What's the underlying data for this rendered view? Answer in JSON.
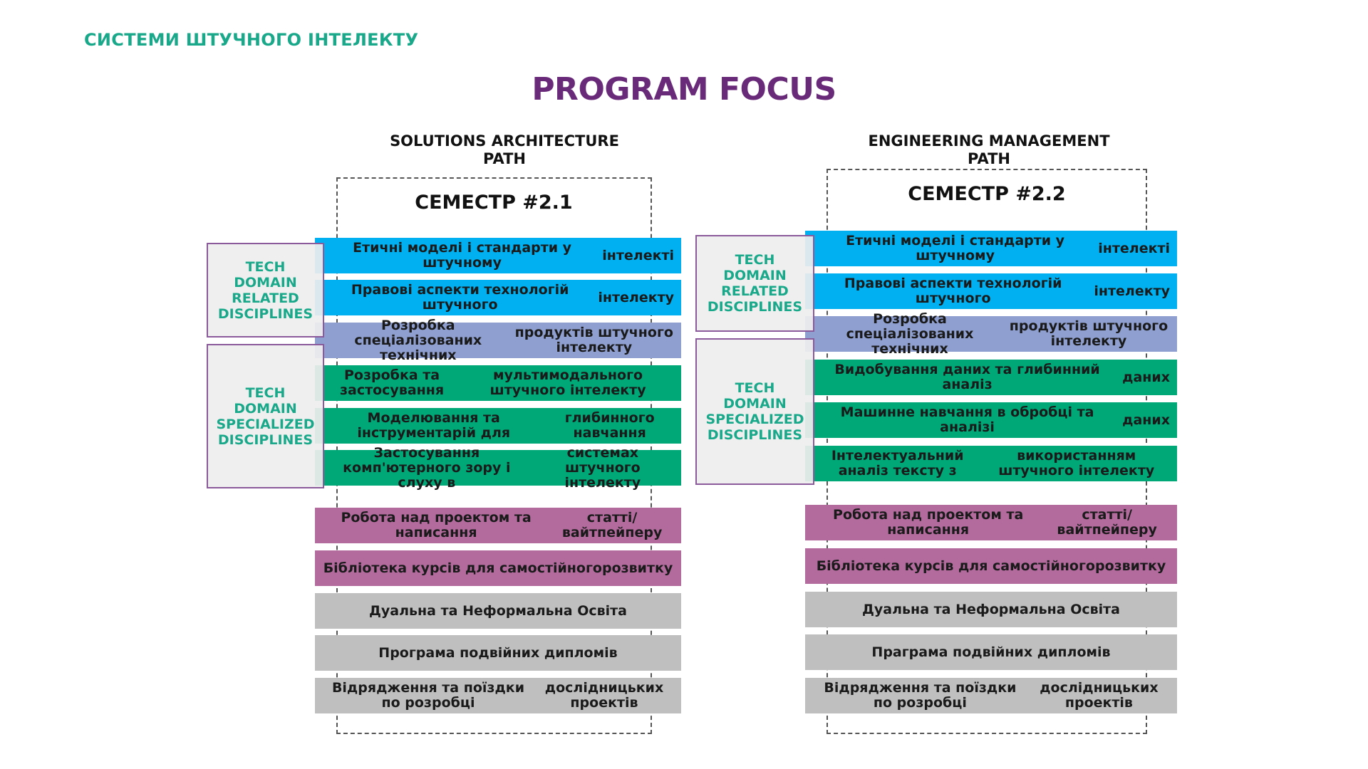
{
  "header": {
    "brand": "СИСТЕМИ ШТУЧНОГО ІНТЕЛЕКТУ",
    "title": "PROGRAM FOCUS"
  },
  "colors": {
    "blue": "#00b0f0",
    "lavender": "#8e9fd0",
    "green": "#00a878",
    "pink": "#b36b9e",
    "gray": "#bfbfbf",
    "brand_green": "#19a88a",
    "title_purple": "#6a2a7a",
    "box_border": "#8a5a9a"
  },
  "paths": [
    {
      "title_lines": [
        "SOLUTIONS ARCHITECTURE",
        "PATH"
      ],
      "semester": "СЕМЕСТР #2.1",
      "categories": [
        {
          "lines": [
            "TECH",
            "DOMAIN",
            "RELATED",
            "DISCIPLINES"
          ]
        },
        {
          "lines": [
            "TECH",
            "DOMAIN",
            "SPECIALIZED",
            "DISCIPLINES"
          ]
        }
      ],
      "disciplines": [
        {
          "lines": [
            "Етичні моделі і стандарти у штучному",
            "інтелекті"
          ],
          "color": "blue"
        },
        {
          "lines": [
            "Правові аспекти технологій штучного",
            "інтелекту"
          ],
          "color": "blue"
        },
        {
          "lines": [
            "Розробка спеціалізованих технічних",
            "продуктів штучного інтелекту"
          ],
          "color": "lavender"
        },
        {
          "lines": [
            "Розробка та застосування",
            "мультимодального штучного інтелекту"
          ],
          "color": "green"
        },
        {
          "lines": [
            "Моделювання та інструментарій для",
            "глибинного навчання"
          ],
          "color": "green"
        },
        {
          "lines": [
            "Застосування комп'ютерного зору і слуху в",
            "системах штучного інтелекту"
          ],
          "color": "green"
        },
        {
          "lines": [
            "Робота над проектом та написання",
            "статті/вайтпейперу"
          ],
          "color": "pink"
        },
        {
          "lines": [
            "Бібліотека курсів для самостійного",
            "розвитку"
          ],
          "color": "pink"
        },
        {
          "lines": [
            "Дуальна та Неформальна Освіта"
          ],
          "color": "gray"
        },
        {
          "lines": [
            "Програма подвійних дипломів"
          ],
          "color": "gray"
        },
        {
          "lines": [
            "Відрядження та поїздки по розробці",
            "дослідницьких проектів"
          ],
          "color": "gray"
        }
      ]
    },
    {
      "title_lines": [
        "ENGINEERING MANAGEMENT",
        "PATH"
      ],
      "semester": "СЕМЕСТР #2.2",
      "categories": [
        {
          "lines": [
            "TECH",
            "DOMAIN",
            "RELATED",
            "DISCIPLINES"
          ]
        },
        {
          "lines": [
            "TECH",
            "DOMAIN",
            "SPECIALIZED",
            "DISCIPLINES"
          ]
        }
      ],
      "disciplines": [
        {
          "lines": [
            "Етичні моделі і стандарти у штучному",
            "інтелекті"
          ],
          "color": "blue"
        },
        {
          "lines": [
            "Правові аспекти технологій штучного",
            "інтелекту"
          ],
          "color": "blue"
        },
        {
          "lines": [
            "Розробка спеціалізованих технічних",
            "продуктів штучного інтелекту"
          ],
          "color": "lavender"
        },
        {
          "lines": [
            "Видобування даних та глибинний аналіз",
            "даних"
          ],
          "color": "green"
        },
        {
          "lines": [
            "Машинне навчання в обробці та аналізі",
            "даних"
          ],
          "color": "green"
        },
        {
          "lines": [
            "Інтелектуальний аналіз тексту з",
            "використанням штучного інтелекту"
          ],
          "color": "green"
        },
        {
          "lines": [
            "Робота над проектом та написання",
            "статті/вайтпейперу"
          ],
          "color": "pink"
        },
        {
          "lines": [
            "Бібліотека курсів для самостійного",
            "розвитку"
          ],
          "color": "pink"
        },
        {
          "lines": [
            "Дуальна та Неформальна Освіта"
          ],
          "color": "gray"
        },
        {
          "lines": [
            "Праграма подвійних дипломів"
          ],
          "color": "gray"
        },
        {
          "lines": [
            "Відрядження та поїздки по розробці",
            "дослідницьких проектів"
          ],
          "color": "gray"
        }
      ]
    }
  ]
}
